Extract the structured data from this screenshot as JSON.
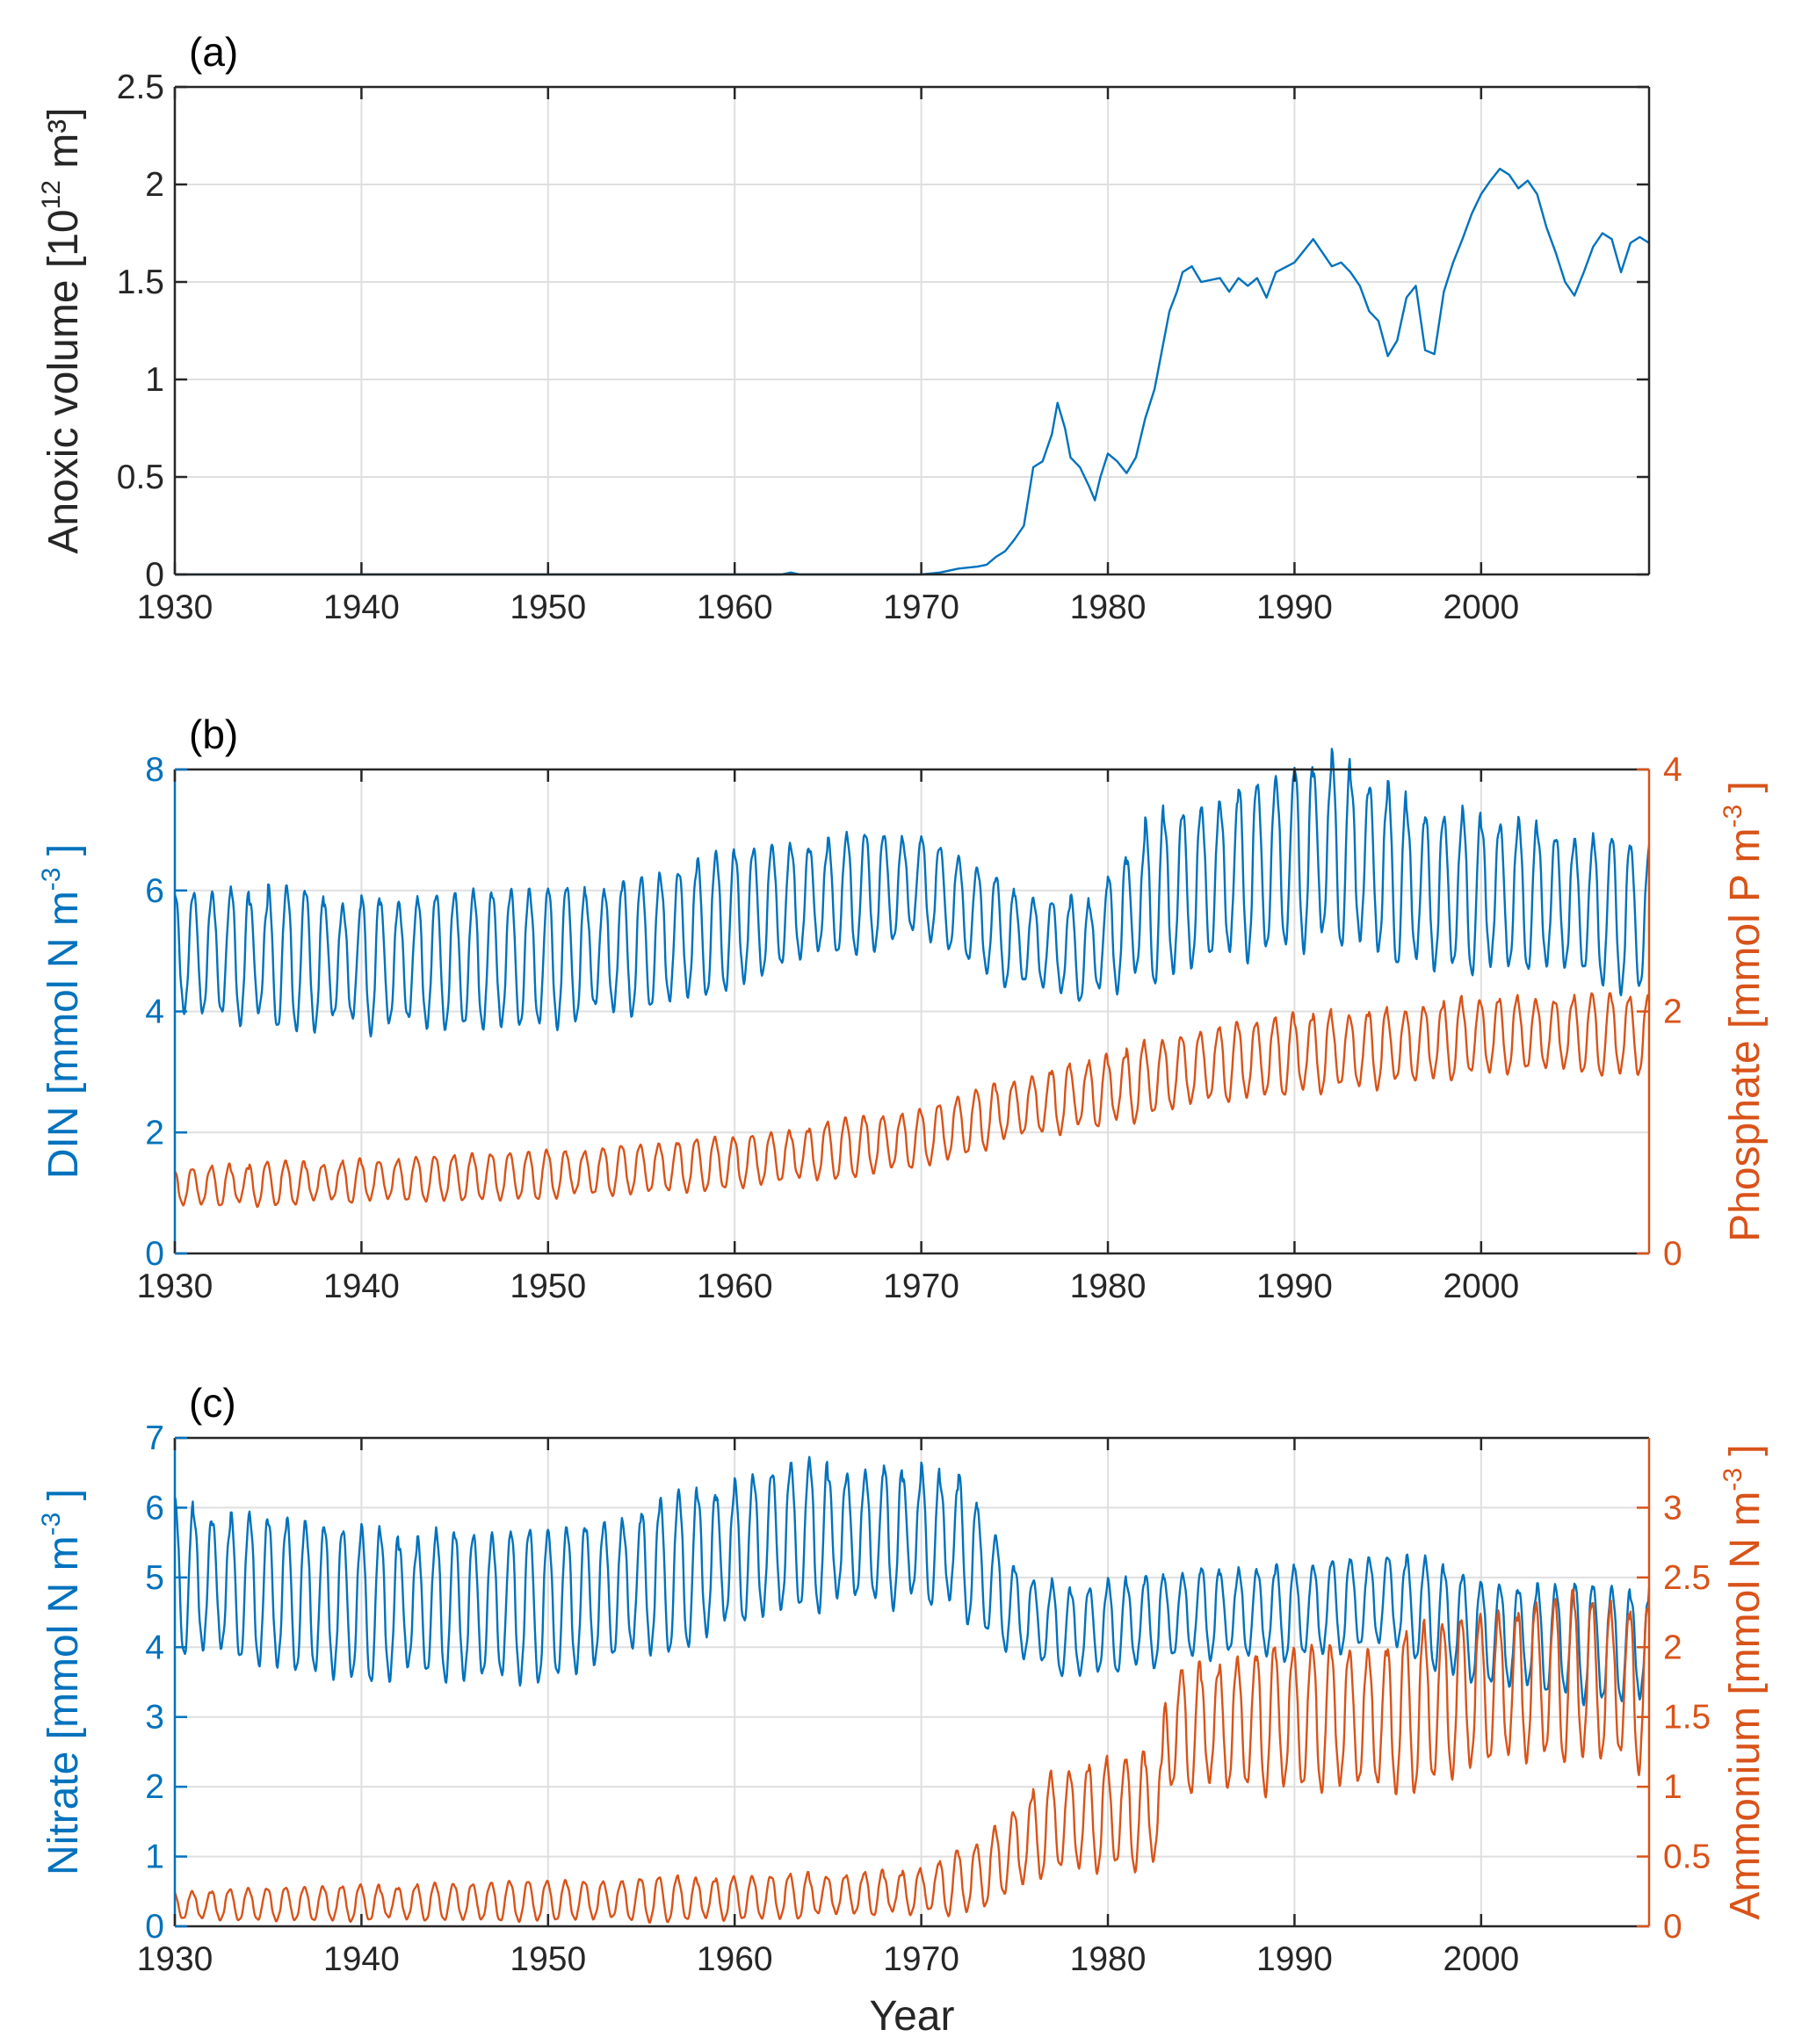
{
  "colors": {
    "blue": "#0072BD",
    "orange": "#D95319",
    "axis": "#262626",
    "grid": "#DFDFDF"
  },
  "chart_data": [
    {
      "panel": "(a)",
      "type": "line",
      "xlabel": "",
      "xlim": [
        1930,
        2009
      ],
      "xticks": [
        1930,
        1940,
        1950,
        1960,
        1970,
        1980,
        1990,
        2000
      ],
      "left_axis": {
        "label": "Anoxic volume [10¹² m³]",
        "label_main": "Anoxic volume [10",
        "label_sup": "12",
        "label_tail": " m³]",
        "ylim": [
          0,
          2.5
        ],
        "ticks": [
          "0",
          "0.5",
          "1",
          "1.5",
          "2",
          "2.5"
        ],
        "tick_values": [
          0,
          0.5,
          1,
          1.5,
          2,
          2.5
        ]
      },
      "series": [
        {
          "name": "Anoxic volume",
          "axis": "left",
          "x": [
            1930,
            1962.5,
            1963,
            1963.5,
            1970,
            1971,
            1972,
            1973,
            1973.5,
            1974,
            1974.5,
            1975,
            1975.5,
            1976,
            1976.5,
            1977,
            1977.3,
            1977.7,
            1978,
            1978.5,
            1979,
            1979.3,
            1979.6,
            1980,
            1980.5,
            1981,
            1981.5,
            1982,
            1982.5,
            1983,
            1983.3,
            1983.7,
            1984,
            1984.5,
            1985,
            1986,
            1986.5,
            1987,
            1987.5,
            1988,
            1988.5,
            1989,
            1990,
            1991,
            1991.5,
            1992,
            1992.5,
            1993,
            1993.5,
            1994,
            1994.5,
            1995,
            1995.5,
            1996,
            1996.5,
            1997,
            1997.5,
            1998,
            1998.5,
            1999,
            1999.5,
            2000,
            2000.5,
            2001,
            2001.5,
            2002,
            2002.5,
            2003,
            2003.5,
            2004,
            2004.5,
            2005,
            2005.5,
            2006,
            2006.5,
            2007,
            2007.5,
            2008,
            2008.5,
            2009
          ],
          "y": [
            0,
            0,
            0.01,
            0,
            0,
            0.01,
            0.03,
            0.04,
            0.05,
            0.09,
            0.12,
            0.18,
            0.25,
            0.55,
            0.58,
            0.72,
            0.88,
            0.75,
            0.6,
            0.55,
            0.45,
            0.38,
            0.5,
            0.62,
            0.58,
            0.52,
            0.6,
            0.8,
            0.95,
            1.2,
            1.35,
            1.45,
            1.55,
            1.58,
            1.5,
            1.52,
            1.45,
            1.52,
            1.48,
            1.52,
            1.42,
            1.55,
            1.6,
            1.72,
            1.65,
            1.58,
            1.6,
            1.55,
            1.48,
            1.35,
            1.3,
            1.12,
            1.2,
            1.42,
            1.48,
            1.15,
            1.13,
            1.45,
            1.6,
            1.72,
            1.85,
            1.95,
            2.02,
            2.08,
            2.05,
            1.98,
            2.02,
            1.95,
            1.78,
            1.65,
            1.5,
            1.43,
            1.55,
            1.68,
            1.75,
            1.72,
            1.55,
            1.7,
            1.73,
            1.7
          ],
          "color": "blue"
        }
      ]
    },
    {
      "panel": "(b)",
      "type": "line",
      "xlabel": "",
      "xlim": [
        1930,
        2009
      ],
      "xticks": [
        1930,
        1940,
        1950,
        1960,
        1970,
        1980,
        1990,
        2000
      ],
      "left_axis": {
        "label": "DIN [mmol N m⁻³ ]",
        "label_main": "DIN [mmol N m",
        "label_sup": "-3",
        "label_tail": " ]",
        "ylim": [
          0,
          8
        ],
        "ticks": [
          "0",
          "2",
          "4",
          "6",
          "8"
        ],
        "tick_values": [
          0,
          2,
          4,
          6,
          8
        ]
      },
      "right_axis": {
        "label": "Phosphate [mmol P m⁻³ ]",
        "label_main": "Phosphate [mmol P m",
        "label_sup": "-3",
        "label_tail": " ]",
        "ylim": [
          0,
          4
        ],
        "ticks": [
          "0",
          "2",
          "4"
        ],
        "tick_values": [
          0,
          2,
          4
        ]
      },
      "series": [
        {
          "name": "DIN",
          "axis": "left",
          "color": "blue",
          "mean": {
            "x": [
              1930,
              1940,
              1950,
              1955,
              1963,
              1970,
              1975,
              1979,
              1982,
              1986,
              1992,
              1997,
              2003,
              2009
            ],
            "y": [
              5.0,
              4.8,
              4.9,
              5.1,
              5.8,
              6.1,
              5.2,
              5.0,
              5.8,
              6.2,
              6.7,
              6.0,
              5.9,
              5.5
            ]
          },
          "amplitude": {
            "x": [
              1930,
              1940,
              1960,
              1970,
              1979,
              1983,
              1993,
              2000,
              2009
            ],
            "y": [
              1.0,
              1.05,
              1.05,
              0.8,
              0.8,
              1.3,
              1.4,
              1.2,
              1.1
            ]
          }
        },
        {
          "name": "Phosphate",
          "axis": "right",
          "color": "orange",
          "mean": {
            "x": [
              1930,
              1940,
              1950,
              1960,
              1965,
              1970,
              1975,
              1980,
              1985,
              1990,
              1995,
              2000,
              2005,
              2009
            ],
            "y": [
              0.55,
              0.6,
              0.65,
              0.75,
              0.85,
              0.95,
              1.2,
              1.35,
              1.55,
              1.65,
              1.7,
              1.8,
              1.82,
              1.8
            ]
          },
          "amplitude": {
            "x": [
              1930,
              1960,
              1975,
              1985,
              2009
            ],
            "y": [
              0.15,
              0.2,
              0.25,
              0.3,
              0.3
            ]
          }
        }
      ]
    },
    {
      "panel": "(c)",
      "type": "line",
      "xlabel": "Year",
      "xlim": [
        1930,
        2009
      ],
      "xticks": [
        1930,
        1940,
        1950,
        1960,
        1970,
        1980,
        1990,
        2000
      ],
      "left_axis": {
        "label": "Nitrate [mmol N m⁻³ ]",
        "label_main": "Nitrate [mmol N m",
        "label_sup": "-3",
        "label_tail": " ]",
        "ylim": [
          0,
          7
        ],
        "ticks": [
          "0",
          "1",
          "2",
          "3",
          "4",
          "5",
          "6",
          "7"
        ],
        "tick_values": [
          0,
          1,
          2,
          3,
          4,
          5,
          6,
          7
        ]
      },
      "right_axis": {
        "label": "Ammonium [mmol N m⁻³ ]",
        "label_main": "Ammonium [mmol N m",
        "label_sup": "-3",
        "label_tail": " ]",
        "ylim": [
          0,
          3.5
        ],
        "ticks": [
          "0",
          "0.5",
          "1",
          "1.5",
          "2",
          "2.5",
          "3"
        ],
        "tick_values": [
          0,
          0.5,
          1,
          1.5,
          2,
          2.5,
          3
        ]
      },
      "series": [
        {
          "name": "Nitrate",
          "axis": "left",
          "color": "blue",
          "mean": {
            "x": [
              1930,
              1940,
              1950,
              1956,
              1963,
              1970,
              1972,
              1975,
              1978,
              1985,
              1990,
              1995,
              2000,
              2009
            ],
            "y": [
              5.0,
              4.6,
              4.6,
              5.0,
              5.6,
              5.6,
              5.5,
              4.5,
              4.2,
              4.5,
              4.5,
              4.7,
              4.2,
              4.0
            ]
          },
          "amplitude": {
            "x": [
              1930,
              1940,
              1965,
              1972,
              1976,
              1985,
              2000,
              2009
            ],
            "y": [
              1.0,
              1.0,
              1.0,
              0.9,
              0.6,
              0.6,
              0.7,
              0.8
            ]
          }
        },
        {
          "name": "Ammonium",
          "axis": "right",
          "color": "orange",
          "mean": {
            "x": [
              1930,
              1960,
              1970,
              1973,
              1975,
              1977,
              1982.9,
              1983.1,
              1990,
              1995,
              2000,
              2005,
              2009
            ],
            "y": [
              0.15,
              0.2,
              0.25,
              0.35,
              0.55,
              0.75,
              0.85,
              1.4,
              1.5,
              1.5,
              1.7,
              1.8,
              1.7
            ]
          },
          "amplitude": {
            "x": [
              1930,
              1960,
              1970,
              1975,
              1983,
              1990,
              2009
            ],
            "y": [
              0.1,
              0.15,
              0.15,
              0.3,
              0.4,
              0.5,
              0.55
            ]
          }
        }
      ]
    }
  ]
}
